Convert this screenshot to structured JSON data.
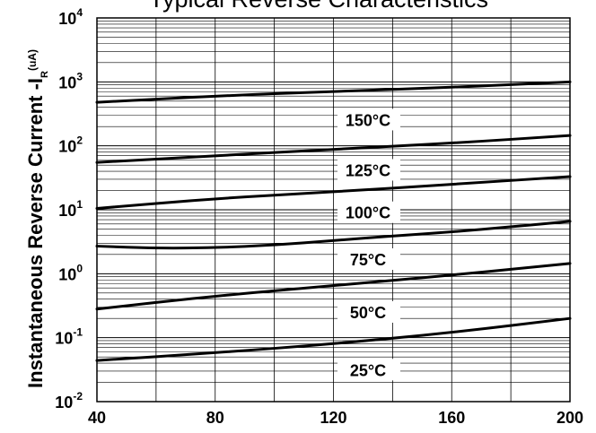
{
  "chart_data": {
    "type": "line",
    "title": "Typical Reverse Characteristics",
    "ylabel": "Instantaneous Reverse Current -I",
    "ylabel_sub": "R",
    "ylabel_unit": "(uA)",
    "xlabel": "",
    "xlim": [
      40,
      200
    ],
    "ylim": [
      0.01,
      10000
    ],
    "yscale": "log",
    "grid": true,
    "x_ticks": [
      40,
      80,
      120,
      160,
      200
    ],
    "y_ticks": [
      {
        "base": "10",
        "exp": "-2",
        "value": 0.01
      },
      {
        "base": "10",
        "exp": "-1",
        "value": 0.1
      },
      {
        "base": "10",
        "exp": "0",
        "value": 1
      },
      {
        "base": "10",
        "exp": "1",
        "value": 10
      },
      {
        "base": "10",
        "exp": "2",
        "value": 100
      },
      {
        "base": "10",
        "exp": "3",
        "value": 1000
      },
      {
        "base": "10",
        "exp": "4",
        "value": 10000
      }
    ],
    "series": [
      {
        "name": "150°C",
        "x": [
          40,
          80,
          120,
          160,
          200
        ],
        "y": [
          480,
          600,
          710,
          820,
          1000
        ]
      },
      {
        "name": "125°C",
        "x": [
          40,
          80,
          120,
          160,
          200
        ],
        "y": [
          55,
          70,
          88,
          110,
          145
        ]
      },
      {
        "name": "100°C",
        "x": [
          40,
          80,
          120,
          160,
          200
        ],
        "y": [
          10.5,
          15,
          19,
          25,
          33
        ]
      },
      {
        "name": "75°C",
        "x": [
          40,
          60,
          80,
          100,
          120,
          140,
          160,
          180,
          200
        ],
        "y": [
          2.7,
          2.5,
          2.55,
          2.8,
          3.3,
          3.9,
          4.5,
          5.4,
          6.6
        ]
      },
      {
        "name": "50°C",
        "x": [
          40,
          80,
          120,
          160,
          200
        ],
        "y": [
          0.28,
          0.45,
          0.65,
          0.95,
          1.45
        ]
      },
      {
        "name": "25°C",
        "x": [
          40,
          80,
          120,
          160,
          200
        ],
        "y": [
          0.044,
          0.058,
          0.08,
          0.12,
          0.2
        ]
      }
    ]
  }
}
